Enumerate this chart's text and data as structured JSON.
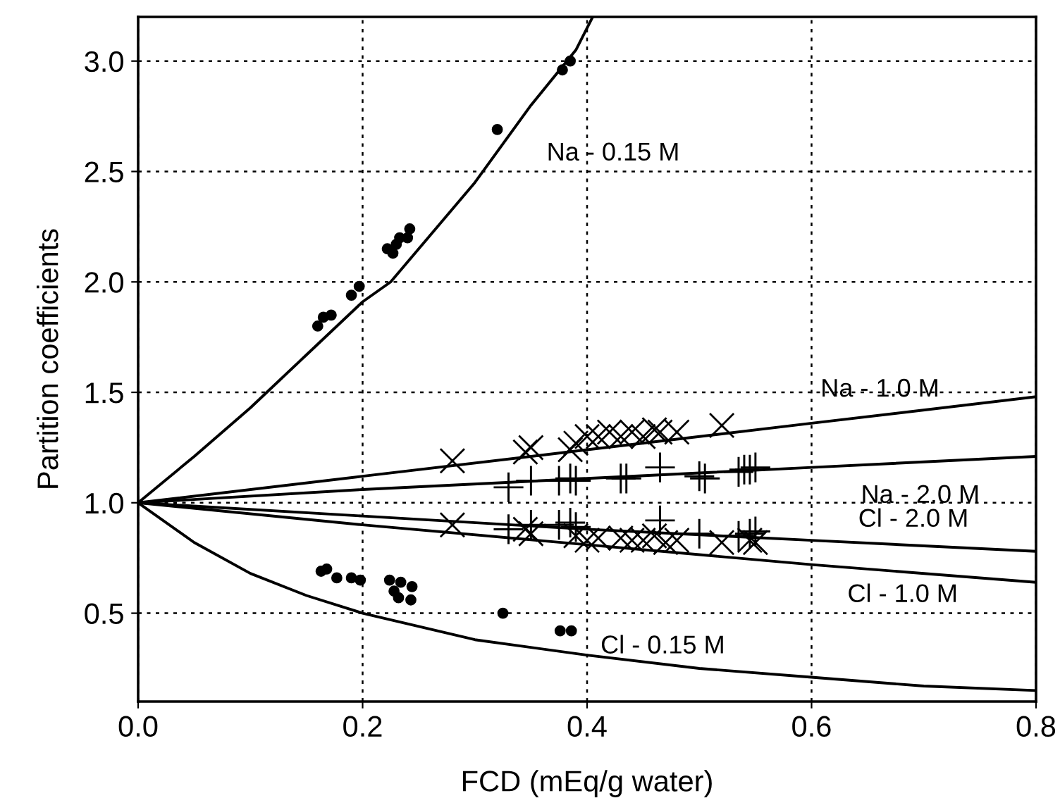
{
  "chart_data": {
    "type": "line",
    "xlabel": "FCD (mEq/g water)",
    "ylabel": "Partition coefficients",
    "xlim": [
      0,
      0.8
    ],
    "ylim": [
      0.1,
      3.2
    ],
    "xticks": [
      {
        "value": 0,
        "label": "0.0"
      },
      0.2,
      0.4,
      0.6,
      0.8
    ],
    "yticks": [
      0.5,
      {
        "value": 1,
        "label": "1.0"
      },
      1.5,
      {
        "value": 2,
        "label": "2.0"
      },
      2.5,
      {
        "value": 3,
        "label": "3.0"
      }
    ],
    "grid": true,
    "annotations": [
      "Na - 0.15 M",
      "Na - 1.0 M",
      "Na - 2.0 M",
      "Cl - 2.0 M",
      "Cl - 1.0 M",
      "Cl - 0.15 M"
    ],
    "series": [
      {
        "color": "#000000",
        "marker": "none",
        "x": [
          0,
          0.05,
          0.1,
          0.15,
          0.2,
          0.225,
          0.25,
          0.3,
          0.35,
          0.39,
          0.405
        ],
        "values": [
          1.0,
          1.21,
          1.43,
          1.67,
          1.91,
          2.0,
          2.15,
          2.45,
          2.8,
          3.05,
          3.2
        ]
      },
      {
        "color": "#000000",
        "marker": "none",
        "x": [
          0,
          0.2,
          0.4,
          0.6,
          0.8
        ],
        "values": [
          1.0,
          1.12,
          1.24,
          1.36,
          1.48
        ]
      },
      {
        "color": "#000000",
        "marker": "none",
        "x": [
          0,
          0.2,
          0.4,
          0.6,
          0.8
        ],
        "values": [
          1.0,
          1.06,
          1.11,
          1.16,
          1.21
        ]
      },
      {
        "color": "#000000",
        "marker": "none",
        "x": [
          0,
          0.2,
          0.4,
          0.6,
          0.8
        ],
        "values": [
          1.0,
          0.94,
          0.88,
          0.83,
          0.78
        ]
      },
      {
        "color": "#000000",
        "marker": "none",
        "x": [
          0,
          0.2,
          0.4,
          0.6,
          0.8
        ],
        "values": [
          1.0,
          0.9,
          0.81,
          0.72,
          0.64
        ]
      },
      {
        "color": "#000000",
        "marker": "none",
        "x": [
          0,
          0.05,
          0.1,
          0.15,
          0.2,
          0.3,
          0.4,
          0.5,
          0.6,
          0.7,
          0.8
        ],
        "values": [
          1.0,
          0.82,
          0.68,
          0.58,
          0.5,
          0.38,
          0.31,
          0.25,
          0.21,
          0.17,
          0.15
        ]
      },
      {
        "type": "scatter",
        "color": "#000000",
        "marker": "circle",
        "x": [
          0.16,
          0.165,
          0.172,
          0.19,
          0.197,
          0.222,
          0.227,
          0.23,
          0.233,
          0.24,
          0.242,
          0.32,
          0.378,
          0.385
        ],
        "values": [
          1.8,
          1.84,
          1.85,
          1.94,
          1.98,
          2.15,
          2.13,
          2.17,
          2.2,
          2.2,
          2.24,
          2.69,
          2.96,
          3.0
        ]
      },
      {
        "type": "scatter",
        "color": "#000000",
        "marker": "circle",
        "x": [
          0.163,
          0.168,
          0.177,
          0.19,
          0.198,
          0.224,
          0.234,
          0.244,
          0.228,
          0.232,
          0.243,
          0.325,
          0.376,
          0.386
        ],
        "values": [
          0.69,
          0.7,
          0.66,
          0.66,
          0.65,
          0.65,
          0.64,
          0.62,
          0.6,
          0.57,
          0.56,
          0.5,
          0.42,
          0.42
        ]
      },
      {
        "type": "scatter",
        "color": "#000000",
        "marker": "cross",
        "x": [
          0.28,
          0.345,
          0.35,
          0.385,
          0.39,
          0.4,
          0.41,
          0.42,
          0.43,
          0.44,
          0.45,
          0.46,
          0.465,
          0.48,
          0.52
        ],
        "values": [
          1.19,
          1.23,
          1.25,
          1.24,
          1.27,
          1.3,
          1.3,
          1.32,
          1.3,
          1.32,
          1.3,
          1.33,
          1.32,
          1.32,
          1.35
        ]
      },
      {
        "type": "scatter",
        "color": "#000000",
        "marker": "cross",
        "x": [
          0.28,
          0.345,
          0.35,
          0.39,
          0.4,
          0.41,
          0.43,
          0.44,
          0.45,
          0.46,
          0.47,
          0.48,
          0.52,
          0.545,
          0.55
        ],
        "values": [
          0.9,
          0.88,
          0.86,
          0.85,
          0.83,
          0.84,
          0.84,
          0.83,
          0.83,
          0.85,
          0.82,
          0.83,
          0.82,
          0.83,
          0.82
        ]
      },
      {
        "type": "scatter",
        "color": "#000000",
        "marker": "plus",
        "x": [
          0.33,
          0.35,
          0.375,
          0.385,
          0.39,
          0.43,
          0.435,
          0.465,
          0.5,
          0.505,
          0.535,
          0.54,
          0.545,
          0.55
        ],
        "values": [
          1.07,
          1.1,
          1.1,
          1.11,
          1.1,
          1.11,
          1.11,
          1.16,
          1.12,
          1.11,
          1.14,
          1.15,
          1.15,
          1.16
        ]
      },
      {
        "type": "scatter",
        "color": "#000000",
        "marker": "plus",
        "x": [
          0.33,
          0.35,
          0.375,
          0.385,
          0.39,
          0.465,
          0.5,
          0.535,
          0.545,
          0.55
        ],
        "values": [
          0.88,
          0.9,
          0.9,
          0.91,
          0.89,
          0.92,
          0.86,
          0.85,
          0.86,
          0.87
        ]
      }
    ]
  }
}
